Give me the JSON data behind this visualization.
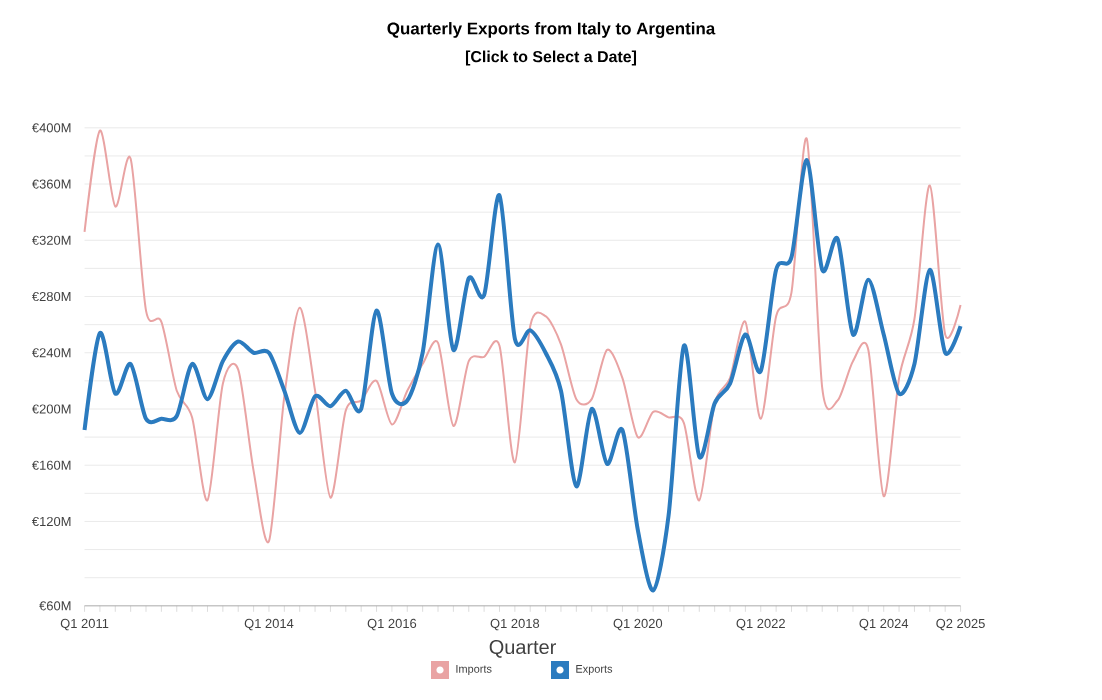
{
  "chart_data": {
    "type": "line",
    "title": "Quarterly Exports from Italy to Argentina",
    "subtitle": "[Click to Select a Date]",
    "xlabel": "Quarter",
    "categories": [
      "Q1 2011",
      null,
      null,
      null,
      null,
      null,
      null,
      null,
      null,
      null,
      null,
      null,
      "Q1 2014",
      null,
      null,
      null,
      null,
      null,
      null,
      null,
      "Q1 2016",
      null,
      null,
      null,
      null,
      null,
      null,
      null,
      "Q1 2018",
      null,
      null,
      null,
      null,
      null,
      null,
      null,
      "Q1 2020",
      null,
      null,
      null,
      null,
      null,
      null,
      null,
      "Q1 2022",
      null,
      null,
      null,
      null,
      null,
      null,
      null,
      "Q1 2024",
      null,
      null,
      null,
      null,
      "Q2 2025"
    ],
    "series": [
      {
        "name": "Imports",
        "color": "#e9a3a3",
        "values": [
          326,
          398,
          344,
          378,
          270,
          262,
          213,
          194,
          135,
          218,
          228,
          156,
          106,
          209,
          272,
          213,
          137,
          199,
          206,
          220,
          189,
          213,
          232,
          247,
          188,
          234,
          237,
          245,
          162,
          259,
          266,
          246,
          207,
          207,
          242,
          222,
          180,
          198,
          194,
          190,
          135,
          204,
          222,
          262,
          193,
          266,
          283,
          392,
          215,
          206,
          234,
          242,
          138,
          222,
          264,
          359,
          253,
          274
        ]
      },
      {
        "name": "Exports",
        "color": "#2b7bbf",
        "values": [
          185,
          254,
          211,
          232,
          193,
          193,
          195,
          232,
          207,
          234,
          248,
          240,
          240,
          213,
          183,
          209,
          202,
          213,
          200,
          270,
          211,
          206,
          240,
          317,
          242,
          293,
          281,
          352,
          250,
          256,
          240,
          213,
          145,
          200,
          161,
          185,
          114,
          71,
          124,
          245,
          166,
          204,
          218,
          253,
          227,
          299,
          308,
          377,
          299,
          321,
          253,
          292,
          253,
          211,
          232,
          299,
          240,
          259
        ]
      }
    ],
    "ylim": [
      60,
      400
    ],
    "yticks": [
      {
        "value": 60,
        "label": "€60M"
      },
      {
        "value": 80,
        "label": null
      },
      {
        "value": 100,
        "label": null
      },
      {
        "value": 120,
        "label": "€120M"
      },
      {
        "value": 140,
        "label": null
      },
      {
        "value": 160,
        "label": "€160M"
      },
      {
        "value": 180,
        "label": null
      },
      {
        "value": 200,
        "label": "€200M"
      },
      {
        "value": 220,
        "label": null
      },
      {
        "value": 240,
        "label": "€240M"
      },
      {
        "value": 260,
        "label": null
      },
      {
        "value": 280,
        "label": "€280M"
      },
      {
        "value": 300,
        "label": null
      },
      {
        "value": 320,
        "label": "€320M"
      },
      {
        "value": 340,
        "label": null
      },
      {
        "value": 360,
        "label": "€360M"
      },
      {
        "value": 380,
        "label": null
      },
      {
        "value": 400,
        "label": "€400M"
      }
    ],
    "grid": "y",
    "legend": "bottom",
    "marker": "none",
    "line_style": "solid"
  }
}
